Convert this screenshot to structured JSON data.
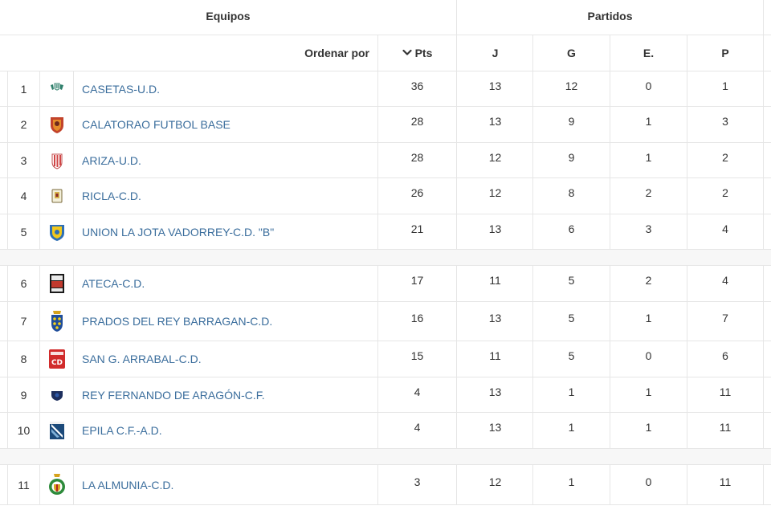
{
  "header": {
    "equipos": "Equipos",
    "partidos": "Partidos"
  },
  "sort_row": {
    "order_by_label": "Ordenar por",
    "pts_label": "Pts",
    "sort_icon": "chevron-down-icon",
    "j_label": "J",
    "g_label": "G",
    "e_label": "E.",
    "p_label": "P"
  },
  "colors": {
    "team_link": "#3a6d9c",
    "border": "#e6e6e6",
    "separator": "#f7f7f7"
  },
  "rows": [
    {
      "pos": "1",
      "team": "CASETAS-U.D.",
      "pts": "36",
      "j": "13",
      "g": "12",
      "e": "0",
      "p": "1",
      "badge_icon": "casetas-crest-icon"
    },
    {
      "pos": "2",
      "team": "CALATORAO FUTBOL BASE",
      "pts": "28",
      "j": "13",
      "g": "9",
      "e": "1",
      "p": "3",
      "badge_icon": "calatorao-crest-icon"
    },
    {
      "pos": "3",
      "team": "ARIZA-U.D.",
      "pts": "28",
      "j": "12",
      "g": "9",
      "e": "1",
      "p": "2",
      "badge_icon": "ariza-crest-icon"
    },
    {
      "pos": "4",
      "team": "RICLA-C.D.",
      "pts": "26",
      "j": "12",
      "g": "8",
      "e": "2",
      "p": "2",
      "badge_icon": "ricla-crest-icon"
    },
    {
      "pos": "5",
      "team": "UNION LA JOTA VADORREY-C.D. \"B\"",
      "pts": "21",
      "j": "13",
      "g": "6",
      "e": "3",
      "p": "4",
      "badge_icon": "union-la-jota-crest-icon"
    },
    {
      "pos": "6",
      "team": "ATECA-C.D.",
      "pts": "17",
      "j": "11",
      "g": "5",
      "e": "2",
      "p": "4",
      "badge_icon": "ateca-crest-icon"
    },
    {
      "pos": "7",
      "team": "PRADOS DEL REY BARRAGAN-C.D.",
      "pts": "16",
      "j": "13",
      "g": "5",
      "e": "1",
      "p": "7",
      "badge_icon": "prados-del-rey-crest-icon"
    },
    {
      "pos": "8",
      "team": "SAN G. ARRABAL-C.D.",
      "pts": "15",
      "j": "11",
      "g": "5",
      "e": "0",
      "p": "6",
      "badge_icon": "san-g-arrabal-crest-icon"
    },
    {
      "pos": "9",
      "team": "REY FERNANDO DE ARAGÓN-C.F.",
      "pts": "4",
      "j": "13",
      "g": "1",
      "e": "1",
      "p": "11",
      "badge_icon": "rey-fernando-crest-icon"
    },
    {
      "pos": "10",
      "team": "EPILA C.F.-A.D.",
      "pts": "4",
      "j": "13",
      "g": "1",
      "e": "1",
      "p": "11",
      "badge_icon": "epila-crest-icon"
    },
    {
      "pos": "11",
      "team": "LA ALMUNIA-C.D.",
      "pts": "3",
      "j": "12",
      "g": "1",
      "e": "0",
      "p": "11",
      "badge_icon": "la-almunia-crest-icon"
    }
  ]
}
